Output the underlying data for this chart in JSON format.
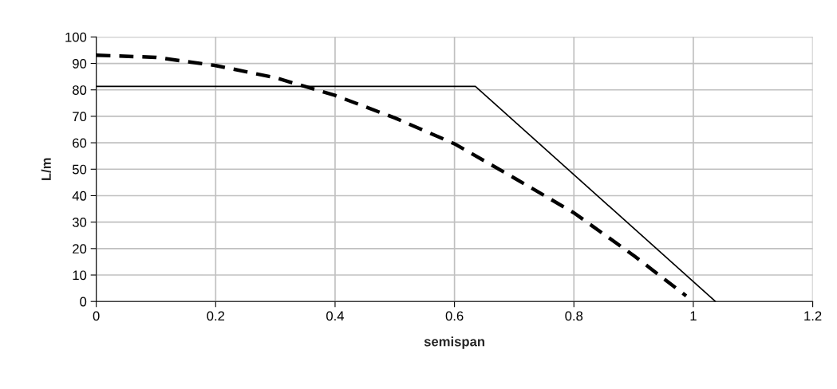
{
  "chart_data": {
    "type": "line",
    "xlabel": "semispan",
    "ylabel": "L/m",
    "xlim": [
      0,
      1.2
    ],
    "xticks": [
      0,
      0.2,
      0.4,
      0.6,
      0.8,
      1,
      1.2
    ],
    "ylim": [
      0,
      100
    ],
    "yticks": [
      0,
      10,
      20,
      30,
      40,
      50,
      60,
      70,
      80,
      90,
      100
    ],
    "grid": true,
    "legend": false,
    "marker": "none",
    "series": [
      {
        "color": "#000000",
        "line_style": "dashed",
        "x": [
          0,
          0.1,
          0.2,
          0.3,
          0.4,
          0.5,
          0.6,
          0.7,
          0.8,
          0.9,
          0.988
        ],
        "values": [
          93.1,
          92.3,
          89.2,
          84.6,
          77.9,
          69.4,
          59.6,
          46.7,
          33.5,
          17.4,
          2.1
        ]
      },
      {
        "color": "#000000",
        "line_style": "solid",
        "x": [
          0,
          0.635,
          1.037
        ],
        "values": [
          81.3,
          81.3,
          0
        ]
      }
    ]
  }
}
